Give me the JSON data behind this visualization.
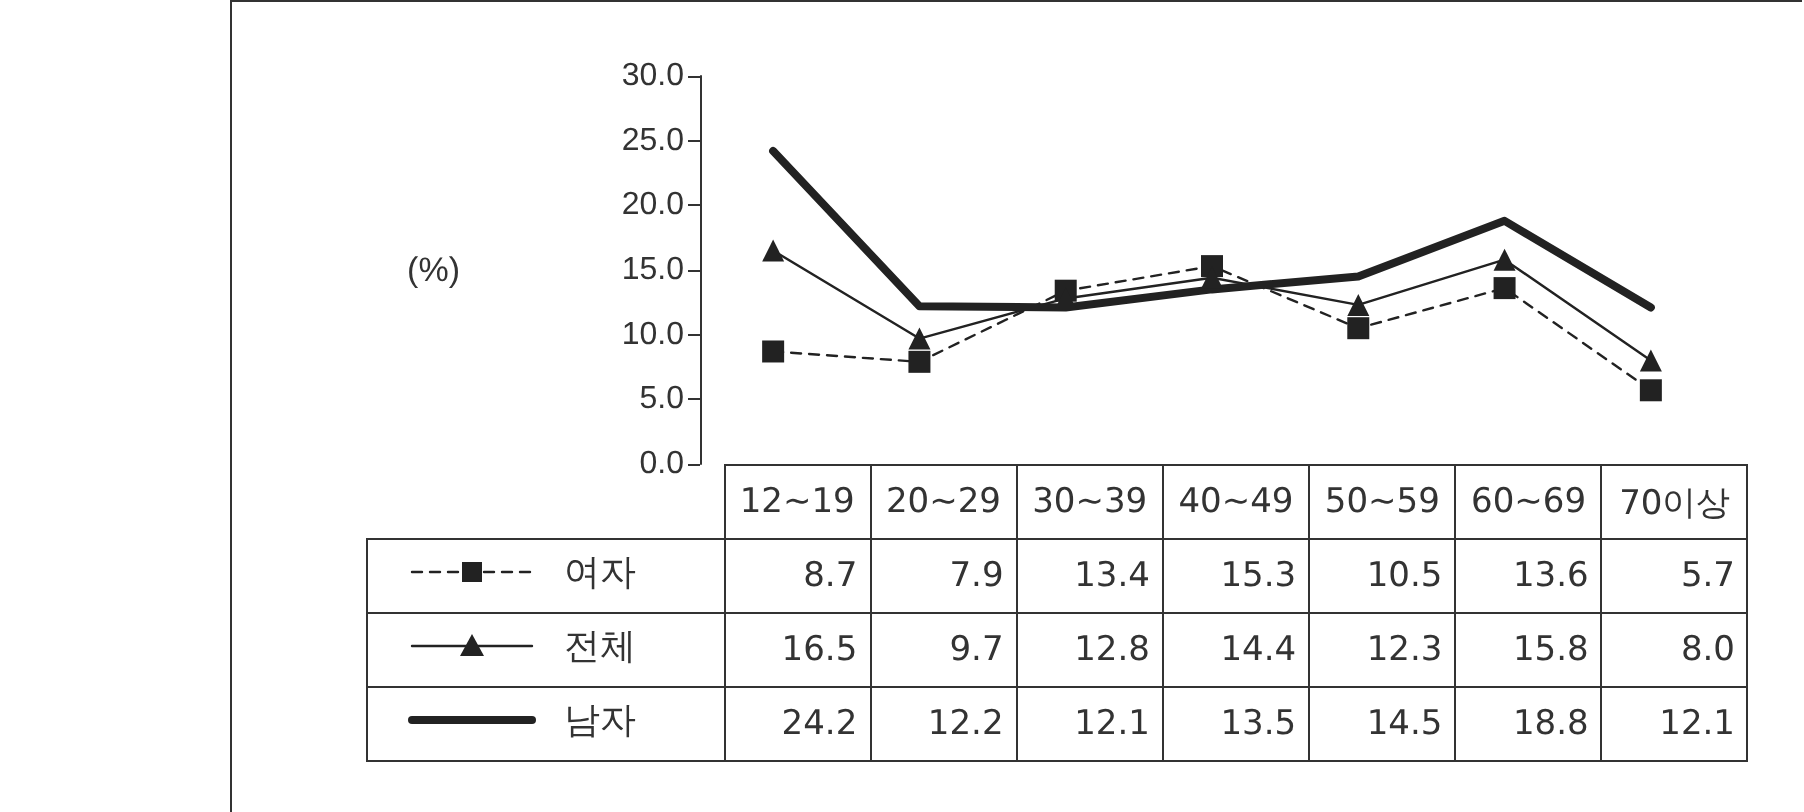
{
  "chart_data": {
    "type": "line",
    "ylabel": "(%)",
    "categories": [
      "12~19",
      "20~29",
      "30~39",
      "40~49",
      "50~59",
      "60~69",
      "70이상"
    ],
    "ylim": [
      0,
      30
    ],
    "yticks": [
      {
        "value": 0,
        "label": "0.0"
      },
      {
        "value": 5,
        "label": "5.0"
      },
      {
        "value": 10,
        "label": "10.0"
      },
      {
        "value": 15,
        "label": "15.0"
      },
      {
        "value": 20,
        "label": "20.0"
      },
      {
        "value": 25,
        "label": "25.0"
      },
      {
        "value": 30,
        "label": "30.0"
      }
    ],
    "series": [
      {
        "name": "여자",
        "color": "#222222",
        "marker": "square",
        "line_style": "dashed",
        "values": [
          8.7,
          7.9,
          13.4,
          15.3,
          10.5,
          13.6,
          5.7
        ],
        "value_labels": [
          "8.7",
          "7.9",
          "13.4",
          "15.3",
          "10.5",
          "13.6",
          "5.7"
        ]
      },
      {
        "name": "전체",
        "color": "#222222",
        "marker": "triangle",
        "line_style": "solid",
        "values": [
          16.5,
          9.7,
          12.8,
          14.4,
          12.3,
          15.8,
          8.0
        ],
        "value_labels": [
          "16.5",
          "9.7",
          "12.8",
          "14.4",
          "12.3",
          "15.8",
          "8.0"
        ]
      },
      {
        "name": "남자",
        "color": "#222222",
        "marker": "none",
        "line_style": "solid",
        "values": [
          24.2,
          12.2,
          12.1,
          13.5,
          14.5,
          18.8,
          12.1
        ],
        "value_labels": [
          "24.2",
          "12.2",
          "12.1",
          "13.5",
          "14.5",
          "18.8",
          "12.1"
        ]
      }
    ],
    "legend": "bottom left",
    "grid": false
  }
}
